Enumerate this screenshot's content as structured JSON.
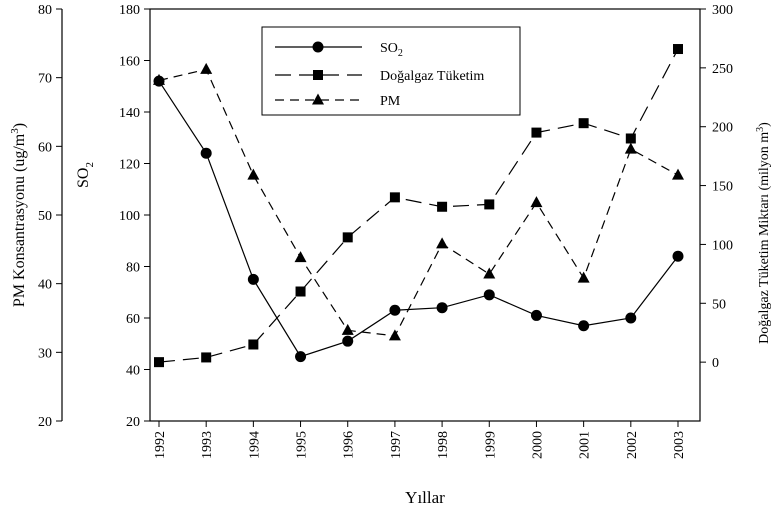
{
  "chart_data": {
    "type": "line",
    "xlabel": "Yıllar",
    "ylabel_left_outer": "PM Konsantrasyonu (ug/m",
    "ylabel_left_outer_sup": "3",
    "ylabel_left_outer_end": ")",
    "ylabel_left_inner": "SO",
    "ylabel_left_inner_sub": "2",
    "ylabel_right": "Doğalgaz Tüketim Miktarı (milyon m",
    "ylabel_right_sup": "3",
    "ylabel_right_end": ")",
    "categories": [
      "1992",
      "1993",
      "1994",
      "1995",
      "1996",
      "1997",
      "1998",
      "1999",
      "2000",
      "2001",
      "2002",
      "2003"
    ],
    "axes": {
      "pm": {
        "min": 20,
        "max": 80,
        "ticks": [
          20,
          30,
          40,
          50,
          60,
          70,
          80
        ]
      },
      "so2": {
        "min": 20,
        "max": 180,
        "ticks": [
          20,
          40,
          60,
          80,
          100,
          120,
          140,
          160,
          180
        ]
      },
      "gas": {
        "min": -50,
        "max": 300,
        "ticks": [
          0,
          50,
          100,
          150,
          200,
          250,
          300
        ]
      }
    },
    "series": [
      {
        "name": "SO",
        "name_sub": "2",
        "axis": "so2",
        "marker": "circle",
        "dash": "solid",
        "values": [
          152,
          124,
          75,
          45,
          51,
          63,
          64,
          69,
          61,
          57,
          60,
          84
        ]
      },
      {
        "name": "Doğalgaz Tüketim",
        "axis": "gas",
        "marker": "square",
        "dash": "long",
        "values": [
          0,
          4,
          15,
          60,
          106,
          140,
          132,
          134,
          195,
          203,
          190,
          266
        ]
      },
      {
        "name": "PM",
        "axis": "pm",
        "marker": "triangle",
        "dash": "medium",
        "values": [
          69.6,
          71.2,
          55.8,
          43.8,
          33.2,
          32.4,
          45.8,
          41.4,
          51.8,
          40.8,
          59.6,
          55.8
        ]
      }
    ],
    "legend_position": "top-center",
    "grid": false
  }
}
